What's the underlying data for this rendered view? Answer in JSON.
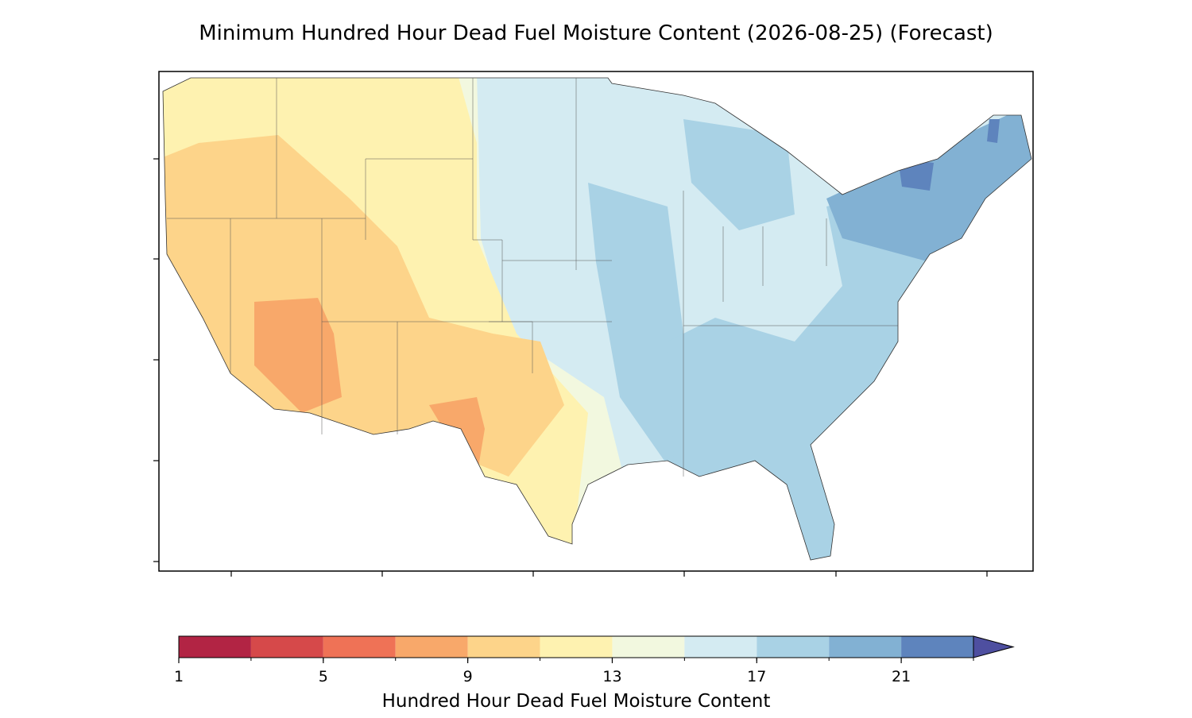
{
  "chart_data": {
    "type": "contour-map",
    "title": "Minimum Hundred Hour Dead Fuel Moisture Content (2026-08-25) (Forecast)",
    "colorbar": {
      "label": "Hundred Hour Dead Fuel Moisture Content",
      "levels": [
        1,
        3,
        5,
        7,
        9,
        11,
        13,
        15,
        17,
        19,
        21,
        23
      ],
      "colors": [
        "#b22444",
        "#d6494a",
        "#ef7256",
        "#f8a86a",
        "#fdd48a",
        "#fef2b0",
        "#f2f8df",
        "#d4ebf2",
        "#a9d2e5",
        "#82b1d3",
        "#5e84bd"
      ],
      "extend": "max",
      "extend_color": "#4e4fa0",
      "ticks": [
        1,
        5,
        9,
        13,
        17,
        21
      ]
    }
  }
}
